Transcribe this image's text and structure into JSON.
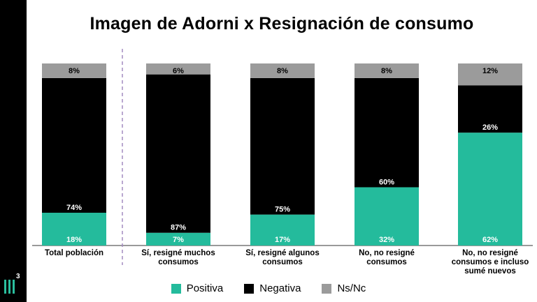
{
  "title": "Imagen de Adorni x Resignación de consumo",
  "logo": {
    "superscript": "3"
  },
  "colors": {
    "positiva": "#24bb9c",
    "negativa": "#000000",
    "nsnc": "#9b9b9b",
    "divider": "#a48bc0"
  },
  "chart_data": {
    "type": "bar",
    "stacked": true,
    "categories": [
      [
        "Total población"
      ],
      [
        "Sí, resigné muchos",
        "consumos"
      ],
      [
        "Sí, resigné algunos",
        "consumos"
      ],
      [
        "No, no resigné",
        "consumos"
      ],
      [
        "No, no resigné",
        "consumos e incluso",
        "sumé nuevos"
      ]
    ],
    "series": [
      {
        "name": "Positiva",
        "values": [
          18,
          7,
          17,
          32,
          62
        ],
        "labels": [
          "18%",
          "7%",
          "17%",
          "32%",
          "62%"
        ]
      },
      {
        "name": "Negativa",
        "values": [
          74,
          87,
          75,
          60,
          26
        ],
        "labels": [
          "74%",
          "87%",
          "75%",
          "60%",
          "26%"
        ]
      },
      {
        "name": "Ns/Nc",
        "values": [
          8,
          6,
          8,
          8,
          12
        ],
        "labels": [
          "8%",
          "6%",
          "8%",
          "8%",
          "12%"
        ]
      }
    ],
    "ylim": [
      0,
      100
    ],
    "legend": "bottom-center",
    "grid": false
  }
}
